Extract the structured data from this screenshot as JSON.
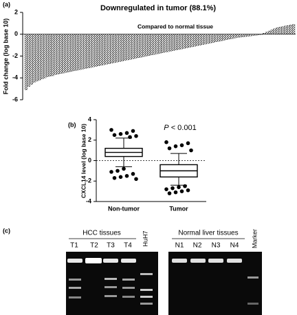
{
  "chart_data": [
    {
      "panel": "(a)",
      "type": "bar",
      "title": "Downregulated in tumor (88.1%)",
      "annotation": "Compared to normal tissue",
      "y_label": "Fold change (log base 10)",
      "color": "#000000",
      "values": [
        -5.1,
        -4.8,
        -4.6,
        -4.4,
        -4.3,
        -4.2,
        -4.1,
        -4.0,
        -3.9,
        -3.85,
        -3.8,
        -3.7,
        -3.65,
        -3.6,
        -3.55,
        -3.5,
        -3.45,
        -3.4,
        -3.35,
        -3.3,
        -3.25,
        -3.2,
        -3.15,
        -3.1,
        -3.05,
        -3.0,
        -2.95,
        -2.9,
        -2.85,
        -2.8,
        -2.75,
        -2.7,
        -2.65,
        -2.6,
        -2.55,
        -2.5,
        -2.45,
        -2.4,
        -2.35,
        -2.3,
        -2.25,
        -2.2,
        -2.15,
        -2.1,
        -2.05,
        -2.0,
        -1.95,
        -1.9,
        -1.85,
        -1.8,
        -1.75,
        -1.7,
        -1.65,
        -1.6,
        -1.55,
        -1.5,
        -1.45,
        -1.4,
        -1.35,
        -1.3,
        -1.25,
        -1.2,
        -1.15,
        -1.1,
        -1.05,
        -1.0,
        -0.95,
        -0.9,
        -0.85,
        -0.8,
        -0.75,
        -0.7,
        -0.65,
        -0.6,
        -0.55,
        -0.5,
        -0.45,
        -0.4,
        -0.35,
        -0.3,
        -0.27,
        -0.24,
        -0.21,
        -0.18,
        -0.15,
        -0.12,
        -0.09,
        -0.06,
        -0.03,
        0.1,
        0.2,
        0.3,
        0.4,
        0.5,
        0.6,
        0.65,
        0.7,
        0.75,
        0.8,
        0.85,
        0.9
      ],
      "ylim": [
        -6,
        2
      ],
      "yticks": [
        -6,
        -4,
        -2,
        0,
        2
      ]
    },
    {
      "panel": "(b)",
      "type": "box",
      "y_label": "CXCL14 level (log base 10)",
      "annotation": [
        "P",
        "< 0.001"
      ],
      "color": "#000000",
      "categories": [
        "Non-tumor",
        "Tumor"
      ],
      "boxes": [
        {
          "whislo": -0.6,
          "q1": 0.4,
          "med": 0.8,
          "q3": 1.2,
          "whishi": 2.2,
          "fliers": [
            3.0,
            2.9,
            2.7,
            2.6,
            2.5,
            2.4,
            2.3,
            -0.8,
            -1.0,
            -1.1,
            -1.3,
            -1.5,
            -1.6,
            -1.7,
            -1.8
          ]
        },
        {
          "whislo": -2.4,
          "q1": -1.6,
          "med": -1.0,
          "q3": -0.4,
          "whishi": 0.7,
          "fliers": [
            1.8,
            1.7,
            1.5,
            1.4,
            1.2,
            1.0,
            -2.5,
            -2.6,
            -2.7,
            -2.8,
            -2.9,
            -3.0,
            -3.1,
            -3.2
          ]
        }
      ],
      "ylim": [
        -4,
        4
      ],
      "yticks": [
        -4,
        -2,
        0,
        2,
        4
      ]
    }
  ],
  "gel": {
    "panel": "(c)",
    "left_title": "HCC tissues",
    "left_lanes": [
      "T1",
      "T2",
      "T3",
      "T4",
      "HuH7"
    ],
    "right_title": "Normal liver tissues",
    "right_lanes": [
      "N1",
      "N2",
      "N3",
      "N4",
      "Marker"
    ]
  }
}
